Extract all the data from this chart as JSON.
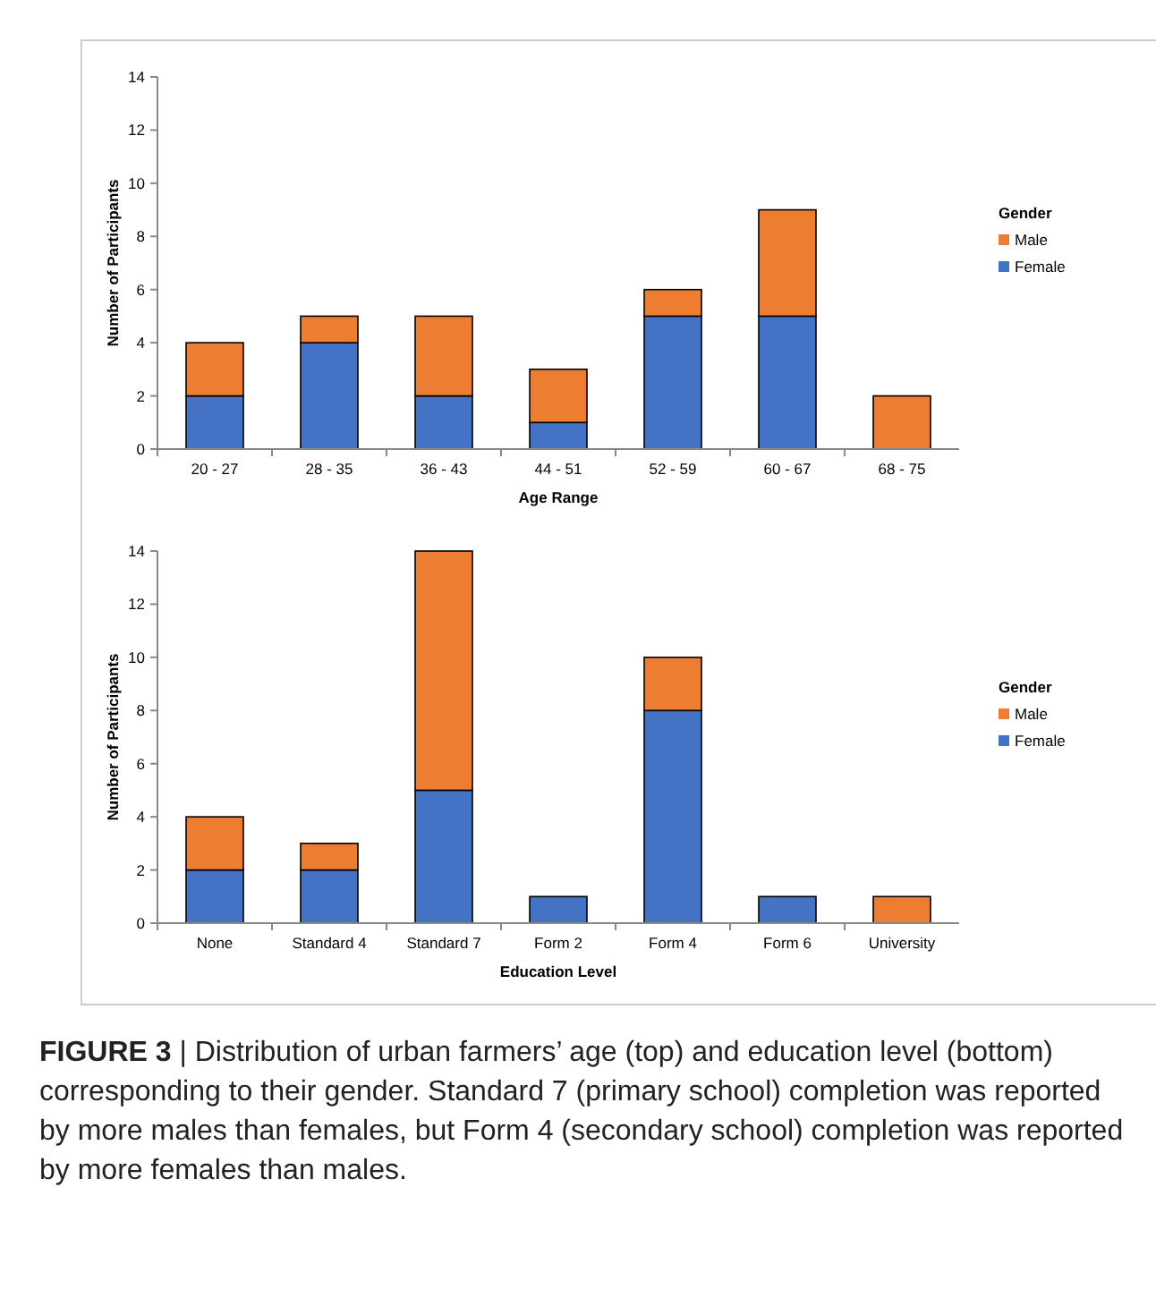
{
  "chart_data": [
    {
      "type": "bar",
      "stacked": true,
      "xlabel": "Age Range",
      "ylabel": "Number of Participants",
      "legend_title": "Gender",
      "legend": "right",
      "categories": [
        "20 - 27",
        "28 - 35",
        "36 - 43",
        "44 - 51",
        "52 - 59",
        "60 - 67",
        "68 - 75"
      ],
      "ylim": [
        0,
        14
      ],
      "yticks": [
        0,
        2,
        4,
        6,
        8,
        10,
        12,
        14
      ],
      "series": [
        {
          "name": "Female",
          "color": "#4472c4",
          "values": [
            2,
            4,
            2,
            1,
            5,
            5,
            0
          ]
        },
        {
          "name": "Male",
          "color": "#ed7d31",
          "values": [
            2,
            1,
            3,
            2,
            1,
            4,
            2
          ]
        }
      ]
    },
    {
      "type": "bar",
      "stacked": true,
      "xlabel": "Education Level",
      "ylabel": "Number of Participants",
      "legend_title": "Gender",
      "legend": "right",
      "categories": [
        "None",
        "Standard 4",
        "Standard 7",
        "Form 2",
        "Form 4",
        "Form 6",
        "University"
      ],
      "ylim": [
        0,
        14
      ],
      "yticks": [
        0,
        2,
        4,
        6,
        8,
        10,
        12,
        14
      ],
      "series": [
        {
          "name": "Female",
          "color": "#4472c4",
          "values": [
            2,
            2,
            5,
            1,
            8,
            1,
            0
          ]
        },
        {
          "name": "Male",
          "color": "#ed7d31",
          "values": [
            2,
            1,
            9,
            0,
            2,
            0,
            1
          ]
        }
      ],
      "annotations": [
        "FIGURE 3 | Distribution of urban farmers’ age (top) and education level (bottom) corresponding to their gender. Standard 7 (primary school) completion was reported by more males than females, but Form 4 (secondary school) completion was reported by more females than males."
      ]
    }
  ]
}
